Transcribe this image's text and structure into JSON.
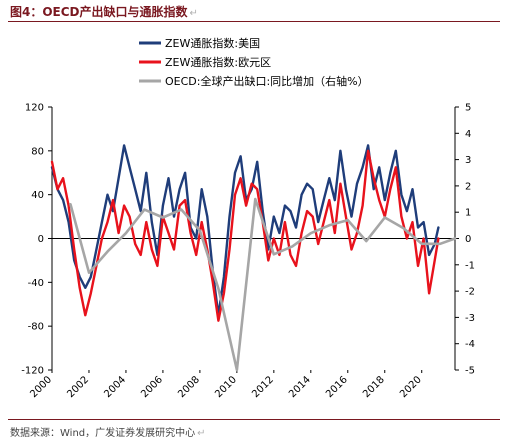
{
  "header": {
    "title": "图4：OECD产出缺口与通胀指数",
    "title_mark": "↵",
    "source": "数据来源：Wind，广发证券发展研究中心",
    "source_mark": "↵"
  },
  "colors": {
    "series_us": "#1f3d7a",
    "series_eu": "#e8121c",
    "series_oecd": "#a6a6a6",
    "title": "#7a1820"
  },
  "chart_data": {
    "type": "line",
    "x_tick_labels": [
      "2000",
      "2002",
      "2004",
      "2006",
      "2008",
      "2010",
      "2012",
      "2014",
      "2016",
      "2018",
      "2020"
    ],
    "x_range": [
      2000.0,
      2021.8
    ],
    "y_left": {
      "range": [
        -120,
        120
      ],
      "ticks": [
        120,
        80,
        40,
        0,
        -40,
        -80,
        -120
      ]
    },
    "y_right": {
      "range": [
        -5,
        5
      ],
      "ticks": [
        5,
        4,
        3,
        2,
        1,
        0,
        -1,
        -2,
        -3,
        -4,
        -5
      ]
    },
    "legend_position": "top-center",
    "grid": false,
    "series": [
      {
        "name": "ZEW通胀指数:美国",
        "axis": "left",
        "color": "#1f3d7a",
        "x": [
          2000.0,
          2000.3,
          2000.6,
          2000.9,
          2001.2,
          2001.5,
          2001.8,
          2002.1,
          2002.4,
          2002.7,
          2003.0,
          2003.3,
          2003.6,
          2003.9,
          2004.2,
          2004.5,
          2004.8,
          2005.1,
          2005.4,
          2005.7,
          2006.0,
          2006.3,
          2006.6,
          2006.9,
          2007.2,
          2007.5,
          2007.8,
          2008.1,
          2008.4,
          2008.7,
          2009.0,
          2009.3,
          2009.6,
          2009.9,
          2010.2,
          2010.5,
          2010.8,
          2011.1,
          2011.4,
          2011.7,
          2012.0,
          2012.3,
          2012.6,
          2012.9,
          2013.2,
          2013.5,
          2013.8,
          2014.1,
          2014.4,
          2014.7,
          2015.0,
          2015.3,
          2015.6,
          2015.9,
          2016.2,
          2016.5,
          2016.8,
          2017.1,
          2017.4,
          2017.7,
          2018.0,
          2018.3,
          2018.6,
          2018.9,
          2019.2,
          2019.5,
          2019.8,
          2020.1,
          2020.4,
          2020.7,
          2020.9
        ],
        "y": [
          65,
          45,
          35,
          15,
          -20,
          -35,
          -45,
          -35,
          -10,
          15,
          40,
          25,
          55,
          85,
          65,
          45,
          25,
          60,
          15,
          -15,
          30,
          55,
          20,
          45,
          60,
          10,
          0,
          45,
          20,
          -30,
          -70,
          -35,
          20,
          60,
          75,
          35,
          45,
          70,
          25,
          -10,
          20,
          5,
          30,
          25,
          10,
          40,
          50,
          45,
          15,
          35,
          55,
          35,
          80,
          45,
          20,
          50,
          65,
          85,
          45,
          65,
          35,
          60,
          80,
          40,
          25,
          45,
          10,
          15,
          -15,
          -5,
          10
        ]
      },
      {
        "name": "ZEW通胀指数:欧元区",
        "axis": "left",
        "color": "#e8121c",
        "x": [
          2000.0,
          2000.3,
          2000.6,
          2000.9,
          2001.2,
          2001.5,
          2001.8,
          2002.1,
          2002.4,
          2002.7,
          2003.0,
          2003.3,
          2003.6,
          2003.9,
          2004.2,
          2004.5,
          2004.8,
          2005.1,
          2005.4,
          2005.7,
          2006.0,
          2006.3,
          2006.6,
          2006.9,
          2007.2,
          2007.5,
          2007.8,
          2008.1,
          2008.4,
          2008.7,
          2009.0,
          2009.3,
          2009.6,
          2009.9,
          2010.2,
          2010.5,
          2010.8,
          2011.1,
          2011.4,
          2011.7,
          2012.0,
          2012.3,
          2012.6,
          2012.9,
          2013.2,
          2013.5,
          2013.8,
          2014.1,
          2014.4,
          2014.7,
          2015.0,
          2015.3,
          2015.6,
          2015.9,
          2016.2,
          2016.5,
          2016.8,
          2017.1,
          2017.4,
          2017.7,
          2018.0,
          2018.3,
          2018.6,
          2018.9,
          2019.2,
          2019.5,
          2019.8,
          2020.1,
          2020.4,
          2020.7,
          2020.9
        ],
        "y": [
          70,
          45,
          55,
          30,
          -10,
          -45,
          -70,
          -50,
          -25,
          0,
          15,
          35,
          5,
          30,
          20,
          -5,
          -15,
          15,
          -10,
          -25,
          20,
          5,
          -10,
          30,
          35,
          5,
          -15,
          15,
          -10,
          -40,
          -75,
          -50,
          -10,
          40,
          55,
          30,
          50,
          45,
          15,
          -20,
          0,
          -15,
          15,
          -15,
          -25,
          5,
          25,
          20,
          -5,
          15,
          35,
          5,
          50,
          20,
          -10,
          5,
          30,
          80,
          55,
          35,
          20,
          45,
          65,
          20,
          0,
          15,
          -25,
          0,
          -50,
          -20,
          0
        ]
      },
      {
        "name": "OECD:全球产出缺口:同比增加（右轴%）",
        "axis": "right",
        "color": "#a6a6a6",
        "x": [
          2001.0,
          2002.0,
          2003.0,
          2004.0,
          2005.0,
          2006.0,
          2007.0,
          2008.0,
          2009.0,
          2010.0,
          2011.0,
          2012.0,
          2013.0,
          2014.0,
          2015.0,
          2016.0,
          2017.0,
          2018.0,
          2019.0,
          2020.0,
          2021.0,
          2021.8
        ],
        "y": [
          1.3,
          -1.3,
          -0.5,
          0.2,
          1.1,
          0.8,
          1.1,
          0.3,
          -1.9,
          -5.0,
          1.5,
          -0.6,
          -0.3,
          0.2,
          0.5,
          0.7,
          -0.1,
          0.8,
          0.4,
          -0.2,
          -0.2,
          0.0
        ]
      }
    ]
  }
}
